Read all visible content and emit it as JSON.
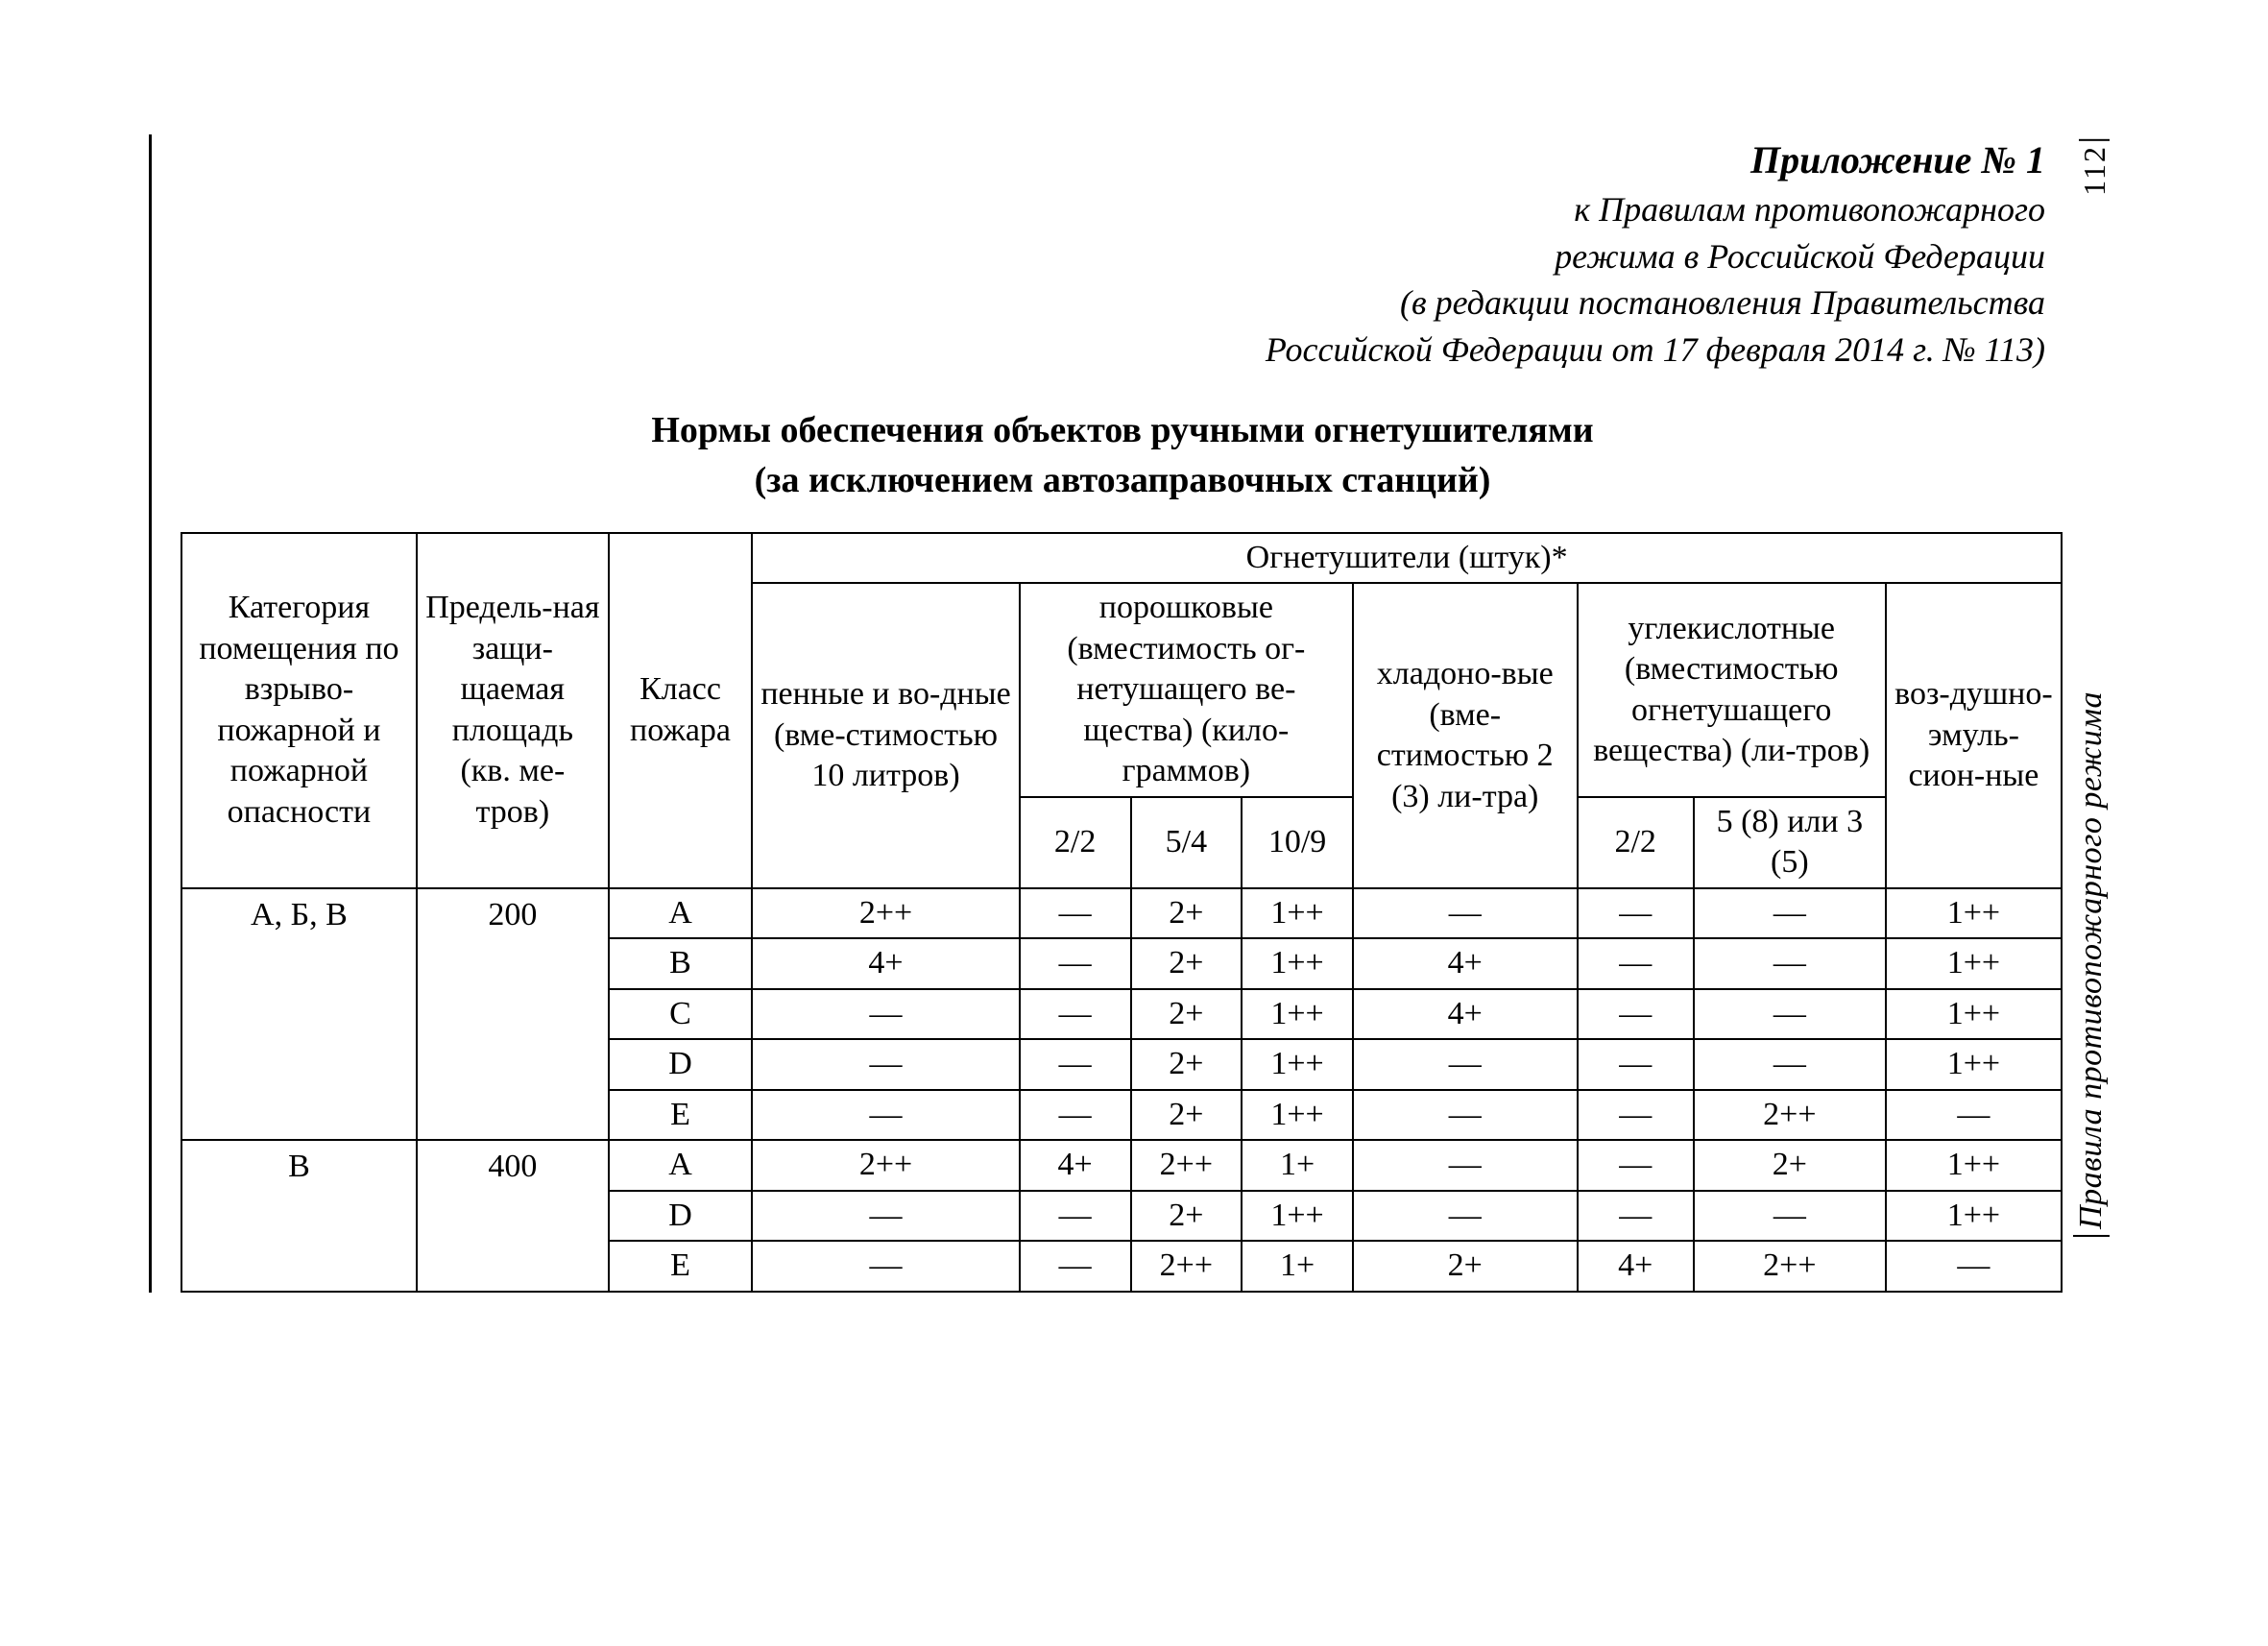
{
  "page_number": "112",
  "side_caption": "Правила противопожарного режима",
  "appendix": {
    "title": "Приложение № 1",
    "line1": "к Правилам противопожарного",
    "line2": "режима в Российской Федерации",
    "line3": "(в редакции постановления Правительства",
    "line4": "Российской Федерации от 17 февраля 2014 г. № 113)"
  },
  "title": {
    "line1": "Нормы обеспечения объектов ручными огнетушителями",
    "line2": "(за исключением автозаправочных станций)"
  },
  "headers": {
    "category": "Категория помещения по взрыво-пожарной и пожарной опасности",
    "area": "Предель-ная защи-щаемая площадь (кв. ме-тров)",
    "fire_class": "Класс пожара",
    "extinguishers": "Огнетушители (штук)*",
    "foam": "пенные и во-дные (вме-стимостью 10 литров)",
    "powder": "порошковые (вместимость ог-нетушащего ве-щества) (кило-граммов)",
    "powder_sub": {
      "a": "2/2",
      "b": "5/4",
      "c": "10/9"
    },
    "halo": "хладоно-вые (вме-стимостью 2 (3) ли-тра)",
    "co2": "углекислотные (вместимостью огнетушащего вещества) (ли-тров)",
    "co2_sub": {
      "a": "2/2",
      "b": "5 (8) или 3 (5)"
    },
    "air": "воз-душно-эмуль-сион-ные"
  },
  "groups": [
    {
      "category": "А, Б, В",
      "area": "200",
      "rows": [
        {
          "class": "A",
          "foam": "2++",
          "p1": "—",
          "p2": "2+",
          "p3": "1++",
          "halo": "—",
          "c1": "—",
          "c2": "—",
          "air": "1++"
        },
        {
          "class": "B",
          "foam": "4+",
          "p1": "—",
          "p2": "2+",
          "p3": "1++",
          "halo": "4+",
          "c1": "—",
          "c2": "—",
          "air": "1++"
        },
        {
          "class": "C",
          "foam": "—",
          "p1": "—",
          "p2": "2+",
          "p3": "1++",
          "halo": "4+",
          "c1": "—",
          "c2": "—",
          "air": "1++"
        },
        {
          "class": "D",
          "foam": "—",
          "p1": "—",
          "p2": "2+",
          "p3": "1++",
          "halo": "—",
          "c1": "—",
          "c2": "—",
          "air": "1++"
        },
        {
          "class": "E",
          "foam": "—",
          "p1": "—",
          "p2": "2+",
          "p3": "1++",
          "halo": "—",
          "c1": "—",
          "c2": "2++",
          "air": "—"
        }
      ]
    },
    {
      "category": "В",
      "area": "400",
      "rows": [
        {
          "class": "A",
          "foam": "2++",
          "p1": "4+",
          "p2": "2++",
          "p3": "1+",
          "halo": "—",
          "c1": "—",
          "c2": "2+",
          "air": "1++"
        },
        {
          "class": "D",
          "foam": "—",
          "p1": "—",
          "p2": "2+",
          "p3": "1++",
          "halo": "—",
          "c1": "—",
          "c2": "—",
          "air": "1++"
        },
        {
          "class": "E",
          "foam": "—",
          "p1": "—",
          "p2": "2++",
          "p3": "1+",
          "halo": "2+",
          "c1": "4+",
          "c2": "2++",
          "air": "—"
        }
      ]
    }
  ]
}
